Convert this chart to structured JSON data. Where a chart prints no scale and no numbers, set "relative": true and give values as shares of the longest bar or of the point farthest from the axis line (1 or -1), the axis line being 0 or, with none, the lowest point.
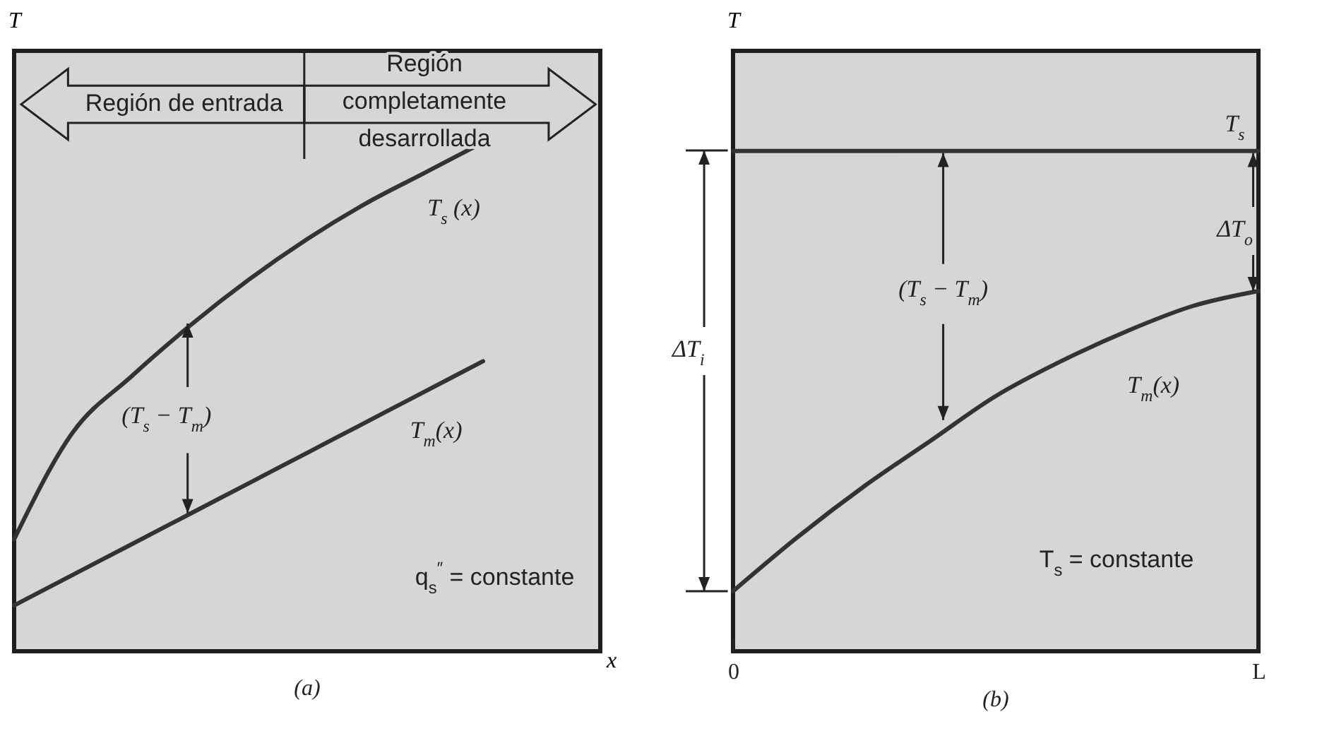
{
  "chart_data": [
    {
      "type": "line",
      "title": "(a)",
      "xlabel": "x",
      "ylabel": "T",
      "relative": true,
      "categories": [
        null,
        null,
        null,
        null,
        null,
        null,
        null,
        null,
        null,
        null,
        null
      ],
      "series": [
        {
          "name": "T$_{s}$ (x)",
          "color": "#333333",
          "values": [
            0.22,
            0.43,
            0.54,
            0.64,
            0.73,
            0.81,
            0.88,
            0.94,
            1,
            null,
            null
          ]
        },
        {
          "name": "T$_{m}$(x)",
          "color": "#333333",
          "values": [
            0.09,
            0.15,
            0.21,
            0.27,
            0.33,
            0.39,
            0.45,
            0.51,
            0.57,
            null,
            null
          ]
        }
      ],
      "annotations": [
        "Región de entrada",
        "Región completamente desarrollada",
        "(T$_{s}$ − T$_{m}$)",
        "q$_{s}$$^{″}$ = constante"
      ]
    },
    {
      "type": "line",
      "title": "(b)",
      "ylabel": "T",
      "relative": true,
      "categories": [
        "0",
        null,
        null,
        null,
        null,
        null,
        null,
        null,
        "L"
      ],
      "series": [
        {
          "name": "T$_{s}$",
          "color": "#333333",
          "values": [
            1,
            1,
            1,
            1,
            1,
            1,
            1,
            1,
            1
          ]
        },
        {
          "name": "T$_{m}$(x)",
          "color": "#333333",
          "values": [
            0.12,
            0.23,
            0.33,
            0.42,
            0.51,
            0.58,
            0.64,
            0.69,
            0.72
          ]
        }
      ],
      "annotations": [
        "(T$_{s}$ − T$_{m}$)",
        "ΔT$_{o}$",
        "ΔT$_{i}$",
        "T$_{s}$ = constante"
      ]
    }
  ]
}
